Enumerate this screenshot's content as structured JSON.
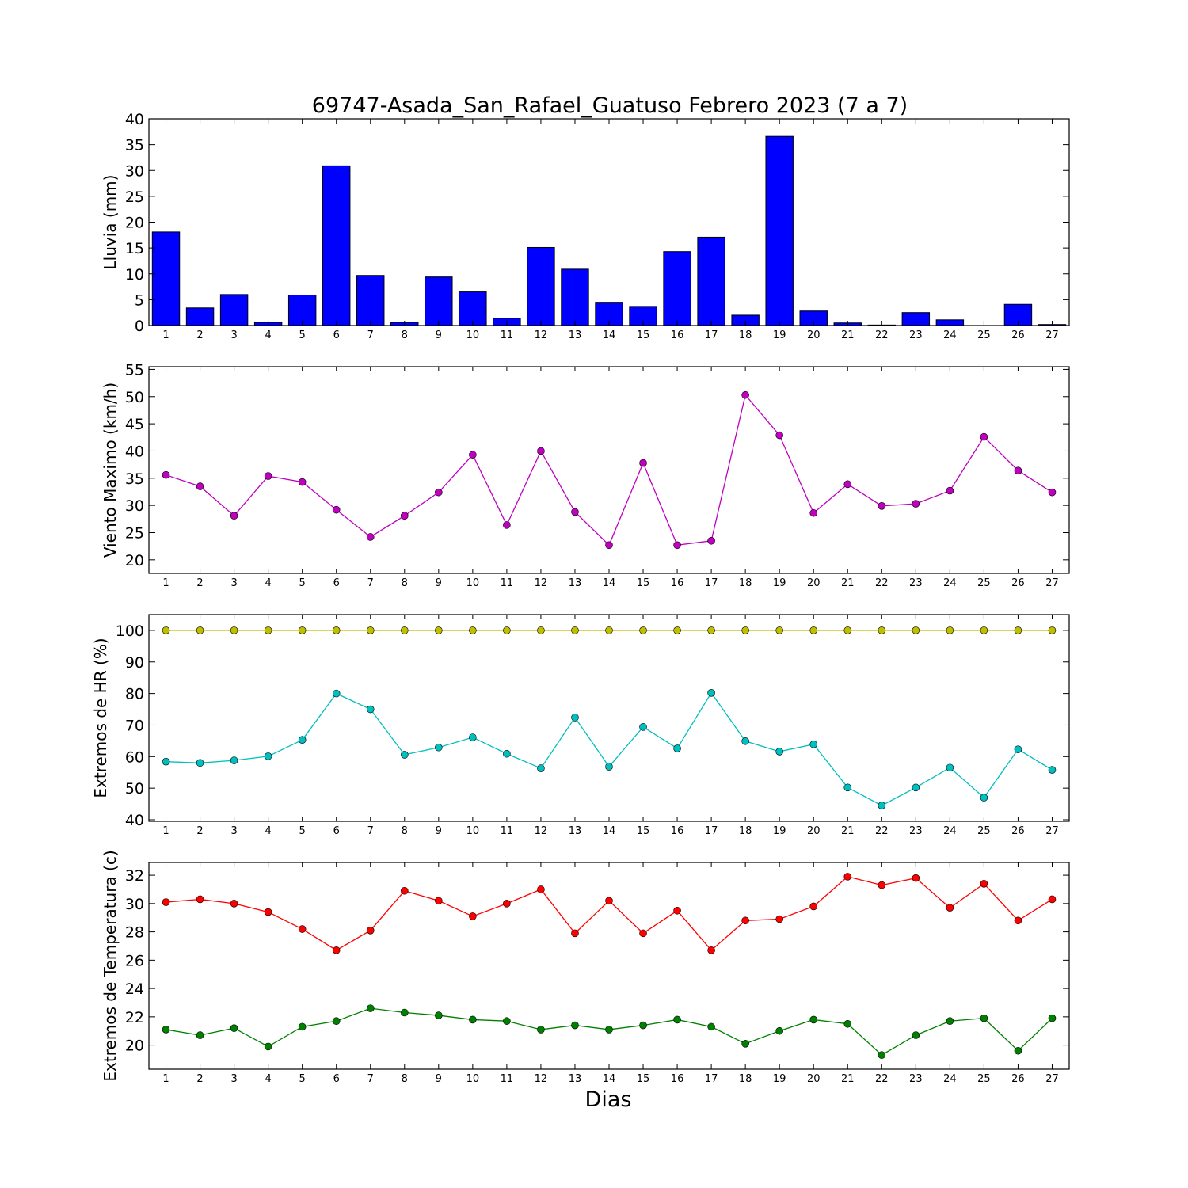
{
  "chart_data": {
    "title": "69747-Asada_San_Rafael_Guatuso Febrero 2023  (7 a 7)",
    "xlabel": "Dias",
    "days": [
      1,
      2,
      3,
      4,
      5,
      6,
      7,
      8,
      9,
      10,
      11,
      12,
      13,
      14,
      15,
      16,
      17,
      18,
      19,
      20,
      21,
      22,
      23,
      24,
      25,
      26,
      27
    ],
    "panels": [
      {
        "type": "bar",
        "ylabel": "Lluvia (mm)",
        "ylim": [
          0,
          40
        ],
        "yticks": [
          0,
          5,
          10,
          15,
          20,
          25,
          30,
          35,
          40
        ],
        "colors": [
          "#0000ff"
        ],
        "series": [
          {
            "values": [
              18.1,
              3.4,
              6.0,
              0.6,
              5.9,
              30.9,
              9.7,
              0.6,
              9.4,
              6.5,
              1.4,
              15.1,
              10.9,
              4.5,
              3.7,
              14.3,
              17.1,
              2.0,
              36.6,
              2.8,
              0.5,
              0.1,
              2.5,
              1.1,
              0.0,
              4.1,
              0.2
            ]
          }
        ]
      },
      {
        "type": "line",
        "ylabel": "Viento Maximo (km/h)",
        "ylim": [
          17.5,
          55.5
        ],
        "yticks": [
          20,
          25,
          30,
          35,
          40,
          45,
          50,
          55
        ],
        "colors": [
          "#bf00bf"
        ],
        "series": [
          {
            "values": [
              35.6,
              33.5,
              28.1,
              35.4,
              34.3,
              29.2,
              24.2,
              28.1,
              32.4,
              39.3,
              26.4,
              40.0,
              28.8,
              22.7,
              37.8,
              22.7,
              23.5,
              50.3,
              42.9,
              28.6,
              33.9,
              29.9,
              30.3,
              32.7,
              42.6,
              36.4,
              32.4
            ]
          }
        ]
      },
      {
        "type": "line",
        "ylabel": "Extremos de HR (%)",
        "ylim": [
          39.5,
          105
        ],
        "yticks": [
          40,
          50,
          60,
          70,
          80,
          90,
          100
        ],
        "colors": [
          "#bfbf00",
          "#00bfbf"
        ],
        "series": [
          {
            "values": [
              100,
              100,
              100,
              100,
              100,
              100,
              100,
              100,
              100,
              100,
              100,
              100,
              100,
              100,
              100,
              100,
              100,
              100,
              100,
              100,
              100,
              100,
              100,
              100,
              100,
              100,
              100
            ]
          },
          {
            "values": [
              58.4,
              58.0,
              58.8,
              60.1,
              65.3,
              80.0,
              75.0,
              60.6,
              62.9,
              66.1,
              60.9,
              56.3,
              72.4,
              56.8,
              69.4,
              62.6,
              80.2,
              64.9,
              61.6,
              63.9,
              50.2,
              44.5,
              50.2,
              56.5,
              47.0,
              62.3,
              55.8
            ]
          }
        ]
      },
      {
        "type": "line",
        "ylabel": "Extremos de Temperatura (c)",
        "ylim": [
          18.3,
          32.9
        ],
        "yticks": [
          20,
          22,
          24,
          26,
          28,
          30,
          32
        ],
        "colors": [
          "#ff0000",
          "#008000"
        ],
        "series": [
          {
            "values": [
              30.1,
              30.3,
              30.0,
              29.4,
              28.2,
              26.7,
              28.1,
              30.9,
              30.2,
              29.1,
              30.0,
              31.0,
              27.9,
              30.2,
              27.9,
              29.5,
              26.7,
              28.8,
              28.9,
              29.8,
              31.9,
              31.3,
              31.8,
              29.7,
              31.4,
              28.8,
              30.3
            ]
          },
          {
            "values": [
              21.1,
              20.7,
              21.2,
              19.9,
              21.3,
              21.7,
              22.6,
              22.3,
              22.1,
              21.8,
              21.7,
              21.1,
              21.4,
              21.1,
              21.4,
              21.8,
              21.3,
              20.1,
              21.0,
              21.8,
              21.5,
              19.3,
              20.7,
              21.7,
              21.9,
              19.6,
              21.9
            ]
          }
        ]
      }
    ]
  }
}
